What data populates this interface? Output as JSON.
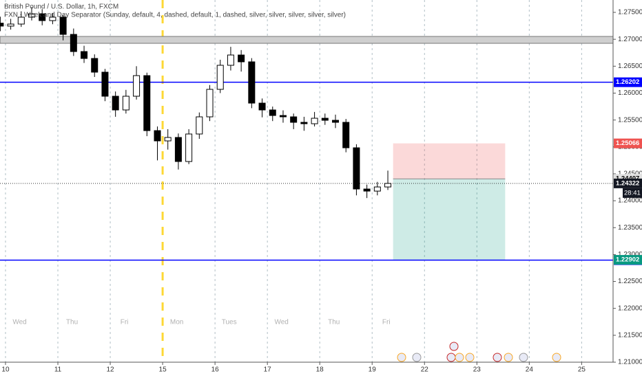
{
  "chart_data": {
    "type": "candlestick",
    "title": "British Pound / U.S. Dollar, 1h, FXCM",
    "subtitle": "FXN - Week and Day Separator (Sunday, default, 4, dashed, default, 1, dashed, silver, silver, silver, silver, silver)",
    "x": [
      -0.1,
      0.1,
      0.3,
      0.5,
      0.7,
      0.9,
      1.1,
      1.3,
      1.5,
      1.7,
      1.9,
      2.1,
      2.3,
      2.5,
      2.7,
      2.9,
      3.1,
      3.3,
      3.5,
      3.7,
      3.9,
      4.1,
      4.3,
      4.5,
      4.7,
      4.9,
      5.1,
      5.3,
      5.5,
      5.7,
      5.9,
      6.1,
      6.3,
      6.5,
      6.7,
      6.9,
      7.1,
      7.3
    ],
    "open": [
      1.273,
      1.27245,
      1.27283,
      1.27411,
      1.27474,
      1.27347,
      1.27411,
      1.27091,
      1.26772,
      1.26644,
      1.26389,
      1.25942,
      1.25687,
      1.25942,
      1.26325,
      1.25303,
      1.25112,
      1.25176,
      1.24729,
      1.2524,
      1.25559,
      1.2607,
      1.26517,
      1.26708,
      1.26581,
      1.25814,
      1.25687,
      1.25584,
      1.25559,
      1.25457,
      1.25431,
      1.25533,
      1.25495,
      1.25457,
      1.24984,
      1.24218,
      1.24179,
      1.24256
    ],
    "high": [
      1.2742,
      1.2738,
      1.2752,
      1.276,
      1.2756,
      1.2749,
      1.2745,
      1.272,
      1.2688,
      1.2672,
      1.2645,
      1.2603,
      1.2606,
      1.265,
      1.2638,
      1.2538,
      1.2533,
      1.2525,
      1.2533,
      1.2564,
      1.2615,
      1.2662,
      1.2686,
      1.268,
      1.2665,
      1.259,
      1.2575,
      1.2568,
      1.2562,
      1.2556,
      1.2565,
      1.2562,
      1.256,
      1.2552,
      1.2505,
      1.243,
      1.2435,
      1.2456
    ],
    "low": [
      1.2715,
      1.2718,
      1.2723,
      1.2735,
      1.2726,
      1.2728,
      1.2698,
      1.2669,
      1.2656,
      1.263,
      1.2585,
      1.2556,
      1.2562,
      1.2588,
      1.252,
      1.2475,
      1.2495,
      1.2458,
      1.2468,
      1.2515,
      1.2548,
      1.26,
      1.2642,
      1.264,
      1.2572,
      1.2555,
      1.2548,
      1.2545,
      1.2533,
      1.253,
      1.2538,
      1.2541,
      1.2535,
      1.249,
      1.241,
      1.2405,
      1.241,
      1.242
    ],
    "close": [
      1.27245,
      1.27283,
      1.27411,
      1.27474,
      1.27347,
      1.27411,
      1.27091,
      1.26772,
      1.26644,
      1.26389,
      1.25942,
      1.25687,
      1.25942,
      1.26325,
      1.25303,
      1.25112,
      1.25176,
      1.24729,
      1.2524,
      1.25559,
      1.2607,
      1.26517,
      1.26708,
      1.26581,
      1.25814,
      1.25687,
      1.25584,
      1.25559,
      1.25457,
      1.25431,
      1.25533,
      1.25495,
      1.25457,
      1.24984,
      1.24218,
      1.24179,
      1.24256,
      1.24322
    ],
    "up_color": "#ffffff",
    "down_color": "#000000",
    "xlim": [
      -0.105,
      11.6
    ],
    "xticks": [
      {
        "value": 0,
        "label": "10"
      },
      {
        "value": 1,
        "label": "11"
      },
      {
        "value": 2,
        "label": "12"
      },
      {
        "value": 3,
        "label": "15"
      },
      {
        "value": 4,
        "label": "16"
      },
      {
        "value": 5,
        "label": "17"
      },
      {
        "value": 6,
        "label": "18"
      },
      {
        "value": 7,
        "label": "19"
      },
      {
        "value": 8,
        "label": "22"
      },
      {
        "value": 9,
        "label": "23"
      },
      {
        "value": 10,
        "label": "24"
      },
      {
        "value": 11,
        "label": "25"
      }
    ],
    "ylim": [
      1.21,
      1.2773
    ],
    "yticks": [
      {
        "value": 1.275,
        "label": "1.27500"
      },
      {
        "value": 1.27,
        "label": "1.27000"
      },
      {
        "value": 1.265,
        "label": "1.26500"
      },
      {
        "value": 1.26,
        "label": "1.26000"
      },
      {
        "value": 1.255,
        "label": "1.25500"
      },
      {
        "value": 1.25,
        "label": "1.25000"
      },
      {
        "value": 1.245,
        "label": "1.24500"
      },
      {
        "value": 1.24,
        "label": "1.24000"
      },
      {
        "value": 1.235,
        "label": "1.23500"
      },
      {
        "value": 1.23,
        "label": "1.23000"
      },
      {
        "value": 1.225,
        "label": "1.22500"
      },
      {
        "value": 1.22,
        "label": "1.22000"
      },
      {
        "value": 1.215,
        "label": "1.21500"
      },
      {
        "value": 1.21,
        "label": "1.21000"
      }
    ],
    "session_labels": [
      "Wed",
      "Thu",
      "Fri",
      "Mon",
      "Tues",
      "Wed",
      "Thu",
      "Fri"
    ],
    "week_separator": {
      "value": 3,
      "color": "#fdd835"
    },
    "hlines": [
      {
        "value": 1.26202,
        "color": "#0000ff"
      },
      {
        "value": 1.22896,
        "color": "#0000ff"
      }
    ],
    "zone": {
      "from": 1.26925,
      "to": 1.27053,
      "color": "#cfcfcf"
    },
    "position": {
      "x": [
        7.4,
        9.54
      ],
      "stop": 1.25066,
      "entry": 1.24407,
      "target": 1.22902,
      "stop_color": "#ef5350",
      "target_color": "#089981"
    },
    "last_price": 1.24322,
    "countdown": "28:41"
  }
}
